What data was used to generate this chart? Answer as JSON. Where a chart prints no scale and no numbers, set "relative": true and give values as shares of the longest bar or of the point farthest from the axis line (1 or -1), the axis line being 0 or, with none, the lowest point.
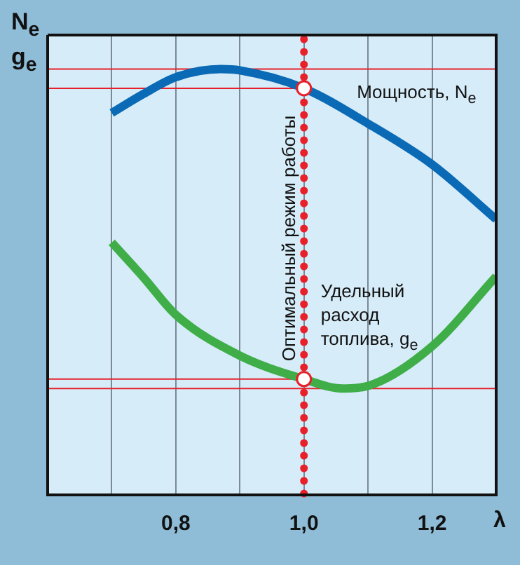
{
  "chart_data": {
    "type": "line",
    "relative": true,
    "ylabel": "N$_{e}$\ng$_{e}$",
    "xlabel": "λ",
    "xlim": [
      0.6,
      1.3
    ],
    "xticks": [
      {
        "value": 0.7,
        "label": null
      },
      {
        "value": 0.8,
        "label": "0,8"
      },
      {
        "value": 0.9,
        "label": null
      },
      {
        "value": 1.0,
        "label": "1,0"
      },
      {
        "value": 1.1,
        "label": null
      },
      {
        "value": 1.2,
        "label": "1,2"
      }
    ],
    "grid": "x",
    "marker": "none",
    "series": [
      {
        "name": "Мощность, N$_{e}$",
        "color": "#0a6ab5",
        "x": [
          0.7,
          0.75,
          0.8,
          0.87,
          0.9,
          1.0,
          1.1,
          1.2,
          1.3
        ],
        "values": [
          0.897,
          0.942,
          0.981,
          1.0,
          0.997,
          0.955,
          0.872,
          0.776,
          0.647
        ]
      },
      {
        "name": "Удельный расход топлива, g$_{e}$",
        "color": "#3fae49",
        "x": [
          0.7,
          0.75,
          0.8,
          0.9,
          1.0,
          1.06,
          1.1,
          1.2,
          1.3
        ],
        "values": [
          0.593,
          0.51,
          0.423,
          0.327,
          0.272,
          0.25,
          0.256,
          0.349,
          0.513
        ]
      },
      {
        "type": "line",
        "color": "#e8202a",
        "x": [
          0.6,
          1.0
        ],
        "values": [
          0.955,
          0.955
        ]
      },
      {
        "type": "line",
        "color": "#e8202a",
        "x": [
          0.6,
          1.0
        ],
        "values": [
          0.272,
          0.272
        ]
      },
      {
        "type": "scatter",
        "marker": "circle",
        "color": "#ffffff",
        "x": [
          1.0,
          1.0
        ],
        "values": [
          0.955,
          0.272
        ]
      }
    ],
    "ref_lines": [
      {
        "axis": "x",
        "value": 1.0,
        "label": "Оптимальный режим работы",
        "color": "#e8202a",
        "line_style": "dotted"
      },
      {
        "axis": "y",
        "value": 1.0,
        "color": "#e8202a"
      },
      {
        "axis": "y",
        "value": 0.25,
        "color": "#e8202a"
      }
    ]
  }
}
